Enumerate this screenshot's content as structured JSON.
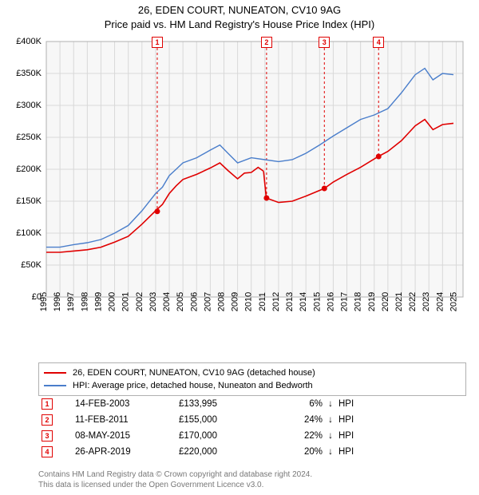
{
  "title": {
    "line1": "26, EDEN COURT, NUNEATON, CV10 9AG",
    "line2": "Price paid vs. HM Land Registry's House Price Index (HPI)"
  },
  "chart": {
    "background_color": "#f7f7f7",
    "grid_color": "#d8d8d8",
    "border_color": "#b0b0b0",
    "xlim": [
      1995,
      2025.5
    ],
    "ylim": [
      0,
      400000
    ],
    "ytick_step": 50000,
    "y_ticks": [
      "£0",
      "£50K",
      "£100K",
      "£150K",
      "£200K",
      "£250K",
      "£300K",
      "£350K",
      "£400K"
    ],
    "x_ticks": [
      1995,
      1996,
      1997,
      1998,
      1999,
      2000,
      2001,
      2002,
      2003,
      2004,
      2005,
      2006,
      2007,
      2008,
      2009,
      2010,
      2011,
      2012,
      2013,
      2014,
      2015,
      2016,
      2017,
      2018,
      2019,
      2020,
      2021,
      2022,
      2023,
      2024,
      2025
    ],
    "series": {
      "hpi": {
        "color": "#4a7ecb",
        "width": 1.4,
        "points": [
          [
            1995,
            78000
          ],
          [
            1996,
            78000
          ],
          [
            1997,
            82000
          ],
          [
            1998,
            85000
          ],
          [
            1999,
            90000
          ],
          [
            2000,
            100000
          ],
          [
            2001,
            112000
          ],
          [
            2002,
            135000
          ],
          [
            2003,
            162000
          ],
          [
            2003.5,
            172000
          ],
          [
            2004,
            190000
          ],
          [
            2004.5,
            200000
          ],
          [
            2005,
            210000
          ],
          [
            2006,
            218000
          ],
          [
            2007,
            230000
          ],
          [
            2007.7,
            238000
          ],
          [
            2008.3,
            225000
          ],
          [
            2009,
            210000
          ],
          [
            2010,
            218000
          ],
          [
            2011,
            215000
          ],
          [
            2012,
            212000
          ],
          [
            2013,
            215000
          ],
          [
            2014,
            225000
          ],
          [
            2015,
            238000
          ],
          [
            2016,
            252000
          ],
          [
            2017,
            265000
          ],
          [
            2018,
            278000
          ],
          [
            2019,
            285000
          ],
          [
            2020,
            295000
          ],
          [
            2021,
            320000
          ],
          [
            2022,
            348000
          ],
          [
            2022.7,
            358000
          ],
          [
            2023.3,
            340000
          ],
          [
            2024,
            350000
          ],
          [
            2024.8,
            348000
          ]
        ]
      },
      "property": {
        "color": "#e00000",
        "width": 1.6,
        "points": [
          [
            1995,
            70000
          ],
          [
            1996,
            70000
          ],
          [
            1997,
            72000
          ],
          [
            1998,
            74000
          ],
          [
            1999,
            78000
          ],
          [
            2000,
            86000
          ],
          [
            2001,
            95000
          ],
          [
            2002,
            114000
          ],
          [
            2003,
            135000
          ],
          [
            2003.5,
            145000
          ],
          [
            2004,
            162000
          ],
          [
            2004.5,
            174000
          ],
          [
            2005,
            184000
          ],
          [
            2006,
            192000
          ],
          [
            2007,
            202000
          ],
          [
            2007.7,
            210000
          ],
          [
            2008.3,
            198000
          ],
          [
            2009,
            185000
          ],
          [
            2009.5,
            194000
          ],
          [
            2010,
            195000
          ],
          [
            2010.5,
            203000
          ],
          [
            2010.9,
            197000
          ]
        ],
        "break_after": 21,
        "points2": [
          [
            2011.1,
            155000
          ],
          [
            2012,
            148000
          ],
          [
            2013,
            150000
          ],
          [
            2014,
            158000
          ],
          [
            2015.35,
            170000
          ],
          [
            2016,
            180000
          ],
          [
            2017,
            192000
          ],
          [
            2018,
            203000
          ],
          [
            2019.3,
            220000
          ],
          [
            2020,
            228000
          ],
          [
            2021,
            245000
          ],
          [
            2022,
            268000
          ],
          [
            2022.7,
            278000
          ],
          [
            2023.3,
            262000
          ],
          [
            2024,
            270000
          ],
          [
            2024.8,
            272000
          ]
        ]
      }
    },
    "markers": [
      {
        "n": "1",
        "x": 2003.12,
        "y": 133995,
        "top_y": 390000
      },
      {
        "n": "2",
        "x": 2011.12,
        "y": 155000,
        "top_y": 390000
      },
      {
        "n": "3",
        "x": 2015.35,
        "y": 170000,
        "top_y": 390000
      },
      {
        "n": "4",
        "x": 2019.32,
        "y": 220000,
        "top_y": 390000
      }
    ],
    "marker_color": "#e00000"
  },
  "legend": {
    "items": [
      {
        "color": "#e00000",
        "label": "26, EDEN COURT, NUNEATON, CV10 9AG (detached house)"
      },
      {
        "color": "#4a7ecb",
        "label": "HPI: Average price, detached house, Nuneaton and Bedworth"
      }
    ]
  },
  "transactions": {
    "hpi_label": "HPI",
    "rows": [
      {
        "n": "1",
        "date": "14-FEB-2003",
        "price": "£133,995",
        "pct": "6%",
        "arrow": "↓"
      },
      {
        "n": "2",
        "date": "11-FEB-2011",
        "price": "£155,000",
        "pct": "24%",
        "arrow": "↓"
      },
      {
        "n": "3",
        "date": "08-MAY-2015",
        "price": "£170,000",
        "pct": "22%",
        "arrow": "↓"
      },
      {
        "n": "4",
        "date": "26-APR-2019",
        "price": "£220,000",
        "pct": "20%",
        "arrow": "↓"
      }
    ]
  },
  "footer": {
    "line1": "Contains HM Land Registry data © Crown copyright and database right 2024.",
    "line2": "This data is licensed under the Open Government Licence v3.0."
  }
}
